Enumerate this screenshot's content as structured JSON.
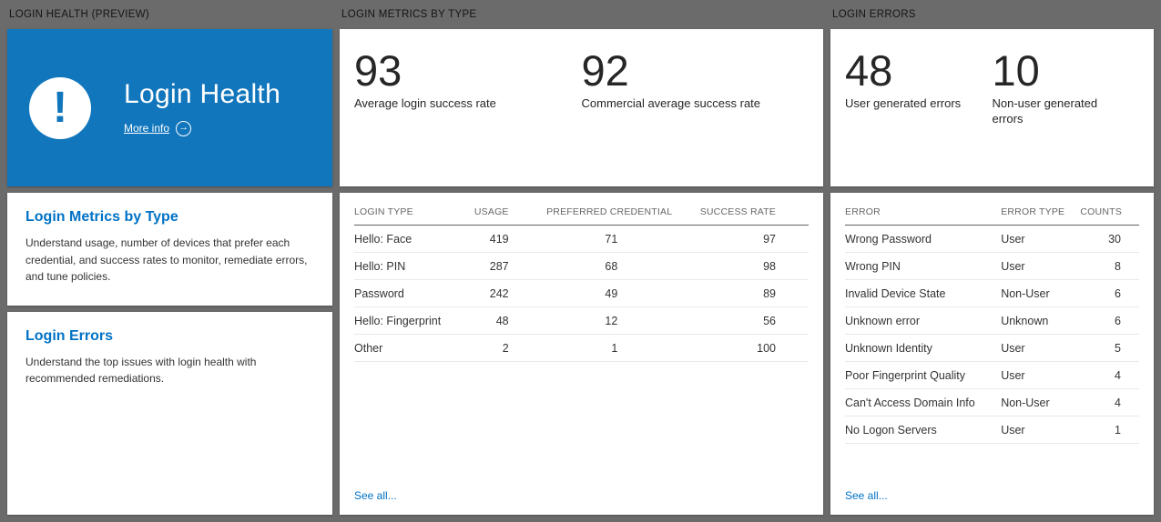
{
  "colors": {
    "background": "#6b6b6b",
    "tile_blue": "#1176bc",
    "link_blue": "#0072c6"
  },
  "health": {
    "header": "LOGIN HEALTH (PREVIEW)",
    "tile": {
      "title": "Login Health",
      "more_info": "More info"
    },
    "sections": [
      {
        "title": "Login Metrics by Type",
        "description": "Understand usage, number of devices that prefer each credential, and success rates to monitor, remediate errors, and tune policies."
      },
      {
        "title": "Login Errors",
        "description": "Understand the top issues with login health with recommended remediations."
      }
    ]
  },
  "metrics": {
    "header": "LOGIN METRICS BY TYPE",
    "stats": [
      {
        "value": "93",
        "label": "Average login success rate"
      },
      {
        "value": "92",
        "label": "Commercial average success rate"
      }
    ],
    "table": {
      "columns": [
        "LOGIN TYPE",
        "USAGE",
        "PREFERRED CREDENTIAL",
        "SUCCESS RATE"
      ],
      "aligns": [
        "left",
        "right",
        "right",
        "right"
      ],
      "rows": [
        [
          "Hello: Face",
          "419",
          "71",
          "97"
        ],
        [
          "Hello: PIN",
          "287",
          "68",
          "98"
        ],
        [
          "Password",
          "242",
          "49",
          "89"
        ],
        [
          "Hello: Fingerprint",
          "48",
          "12",
          "56"
        ],
        [
          "Other",
          "2",
          "1",
          "100"
        ]
      ]
    },
    "see_all": "See all..."
  },
  "errors": {
    "header": "LOGIN ERRORS",
    "stats": [
      {
        "value": "48",
        "label": "User generated errors"
      },
      {
        "value": "10",
        "label": "Non-user generated errors"
      }
    ],
    "table": {
      "columns": [
        "ERROR",
        "ERROR TYPE",
        "COUNTS"
      ],
      "aligns": [
        "left",
        "left",
        "right"
      ],
      "rows": [
        [
          "Wrong Password",
          "User",
          "30"
        ],
        [
          "Wrong PIN",
          "User",
          "8"
        ],
        [
          "Invalid Device State",
          "Non-User",
          "6"
        ],
        [
          "Unknown error",
          "Unknown",
          "6"
        ],
        [
          "Unknown Identity",
          "User",
          "5"
        ],
        [
          "Poor Fingerprint Quality",
          "User",
          "4"
        ],
        [
          "Can't Access Domain Info",
          "Non-User",
          "4"
        ],
        [
          "No Logon Servers",
          "User",
          "1"
        ]
      ]
    },
    "see_all": "See all..."
  }
}
